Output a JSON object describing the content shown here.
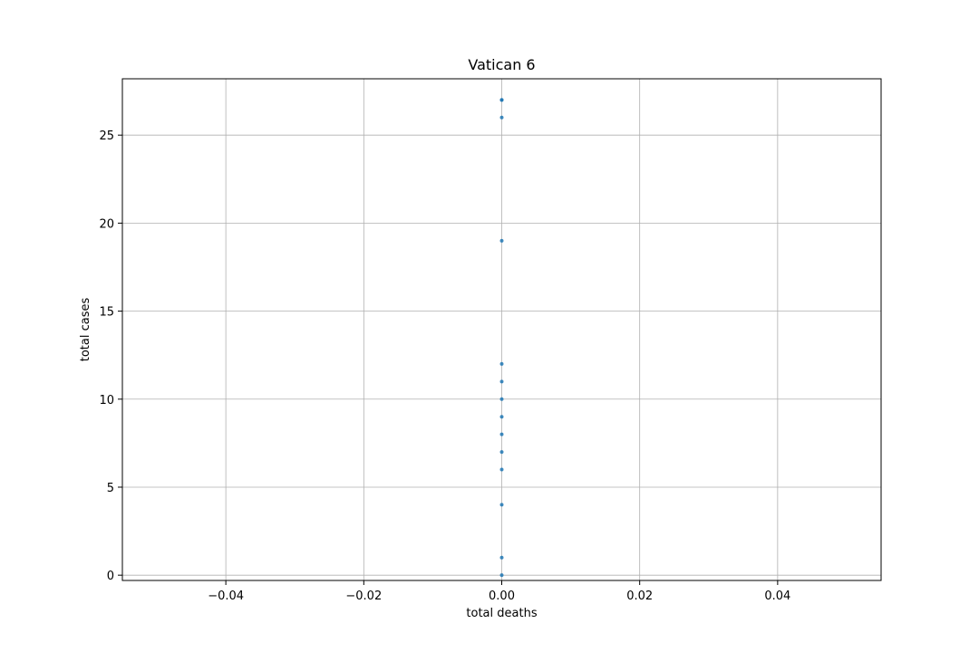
{
  "chart_data": {
    "type": "scatter",
    "title": "Vatican 6",
    "xlabel": "total deaths",
    "ylabel": "total cases",
    "xlim": [
      -0.055,
      0.055
    ],
    "ylim": [
      -0.3,
      28.2
    ],
    "x_ticks": [
      -0.04,
      -0.02,
      0.0,
      0.02,
      0.04
    ],
    "x_tick_labels": [
      "−0.04",
      "−0.02",
      "0.00",
      "0.02",
      "0.04"
    ],
    "y_ticks": [
      0,
      5,
      10,
      15,
      20,
      25
    ],
    "y_tick_labels": [
      "0",
      "5",
      "10",
      "15",
      "20",
      "25"
    ],
    "grid": true,
    "series": [
      {
        "color": "#1f77b4",
        "x": [
          0,
          0,
          0,
          0,
          0,
          0,
          0,
          0,
          0,
          0,
          0,
          0,
          0,
          0
        ],
        "y": [
          0,
          1,
          4,
          6,
          7,
          8,
          9,
          10,
          11,
          12,
          19,
          26,
          27,
          27
        ]
      }
    ]
  }
}
